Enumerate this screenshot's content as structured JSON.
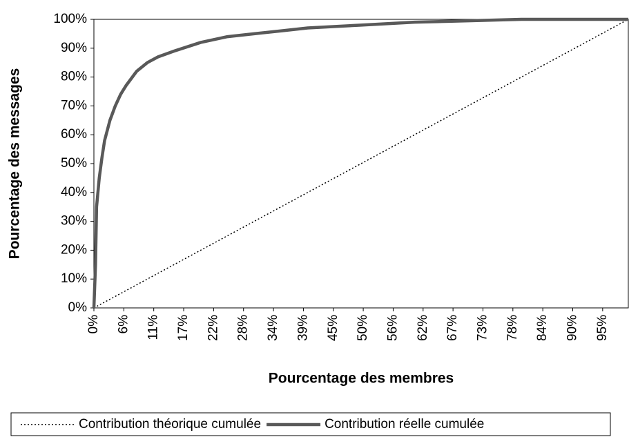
{
  "chart_data": {
    "type": "line",
    "xlabel": "Pourcentage des membres",
    "ylabel": "Pourcentage des messages",
    "x": [
      0,
      0.3,
      0.5,
      1,
      1.5,
      2,
      3,
      4,
      5,
      6,
      8,
      10,
      12,
      15,
      20,
      25,
      30,
      35,
      40,
      50,
      60,
      70,
      80,
      90,
      100
    ],
    "series": [
      {
        "name": "Contribution théorique cumulée",
        "color": "#000000",
        "style": "dotted",
        "values": [
          0,
          0.3,
          0.5,
          1,
          1.5,
          2,
          3,
          4,
          5,
          6,
          8,
          10,
          12,
          15,
          20,
          25,
          30,
          35,
          40,
          50,
          60,
          70,
          80,
          90,
          100
        ]
      },
      {
        "name": "Contribution réelle cumulée",
        "color": "#595959",
        "style": "solid",
        "values": [
          0,
          15,
          35,
          45,
          52,
          58,
          65,
          70,
          74,
          77,
          82,
          85,
          87,
          89,
          92,
          94,
          95,
          96,
          97,
          98,
          99,
          99.5,
          100,
          100,
          100
        ]
      }
    ],
    "xlim": [
      0,
      100
    ],
    "ylim": [
      0,
      100
    ],
    "xticks": [
      {
        "value": 0,
        "label": "0%"
      },
      {
        "value": 5.6,
        "label": "6%"
      },
      {
        "value": 11.2,
        "label": "11%"
      },
      {
        "value": 16.8,
        "label": "17%"
      },
      {
        "value": 22.4,
        "label": "22%"
      },
      {
        "value": 28,
        "label": "28%"
      },
      {
        "value": 33.6,
        "label": "34%"
      },
      {
        "value": 39.2,
        "label": "39%"
      },
      {
        "value": 44.8,
        "label": "45%"
      },
      {
        "value": 50.4,
        "label": "50%"
      },
      {
        "value": 56,
        "label": "56%"
      },
      {
        "value": 61.6,
        "label": "62%"
      },
      {
        "value": 67.2,
        "label": "67%"
      },
      {
        "value": 72.8,
        "label": "73%"
      },
      {
        "value": 78.4,
        "label": "78%"
      },
      {
        "value": 84,
        "label": "84%"
      },
      {
        "value": 89.6,
        "label": "90%"
      },
      {
        "value": 95.2,
        "label": "95%"
      }
    ],
    "yticks": [
      {
        "value": 0,
        "label": "0%"
      },
      {
        "value": 10,
        "label": "10%"
      },
      {
        "value": 20,
        "label": "20%"
      },
      {
        "value": 30,
        "label": "30%"
      },
      {
        "value": 40,
        "label": "40%"
      },
      {
        "value": 50,
        "label": "50%"
      },
      {
        "value": 60,
        "label": "60%"
      },
      {
        "value": 70,
        "label": "70%"
      },
      {
        "value": 80,
        "label": "80%"
      },
      {
        "value": 90,
        "label": "90%"
      },
      {
        "value": 100,
        "label": "100%"
      }
    ],
    "grid": false,
    "legend": "bottom"
  }
}
